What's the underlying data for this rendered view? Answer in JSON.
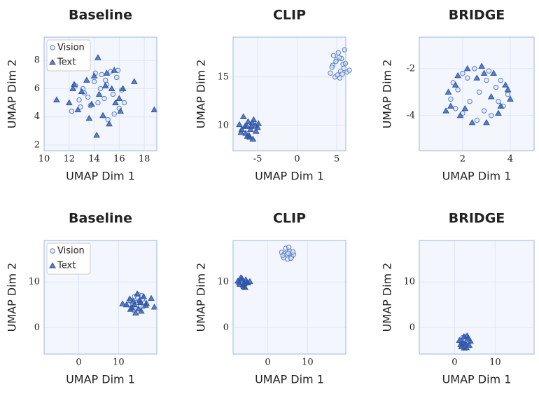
{
  "chart_data": [
    {
      "type": "scatter",
      "title": "Baseline",
      "x_label": "UMAP Dim 1",
      "y_label": "UMAP Dim 2",
      "xlim": [
        10,
        19
      ],
      "ylim": [
        1.6,
        9.65
      ],
      "xticks": [
        10,
        12,
        14,
        16,
        18
      ],
      "yticks": [
        2,
        4,
        6,
        8
      ],
      "grid": true,
      "legend": "upper left",
      "series": [
        {
          "name": "Vision",
          "color": "#5b7fc7",
          "marker": "o",
          "x": [
            12.2,
            12.8,
            13.1,
            13.5,
            14.0,
            14.3,
            14.6,
            15.0,
            15.3,
            15.5,
            15.8,
            16.0,
            16.2,
            13.7,
            14.8,
            12.5,
            15.1,
            14.1,
            13.2,
            16.4,
            15.6,
            14.5,
            12.9,
            15.9,
            14.9
          ],
          "values": [
            4.4,
            5.2,
            6.0,
            5.4,
            6.5,
            5.0,
            7.0,
            6.3,
            7.2,
            5.6,
            6.8,
            4.6,
            5.9,
            4.8,
            5.3,
            6.2,
            3.8,
            7.1,
            5.7,
            5.0,
            4.2,
            6.0,
            4.7,
            7.3,
            6.6
          ]
        },
        {
          "name": "Text",
          "color": "#2f55a8",
          "marker": "^",
          "x": [
            11.0,
            12.0,
            12.4,
            12.7,
            13.0,
            13.4,
            13.8,
            14.2,
            14.3,
            14.4,
            14.7,
            15.0,
            15.2,
            15.4,
            15.6,
            16.0,
            16.3,
            17.2,
            18.8,
            13.6,
            14.0,
            15.7,
            12.3,
            16.1,
            14.9
          ],
          "values": [
            5.2,
            5.0,
            6.3,
            4.5,
            5.8,
            6.6,
            4.9,
            2.7,
            8.2,
            5.6,
            4.1,
            7.1,
            3.5,
            6.0,
            7.3,
            5.3,
            6.0,
            6.5,
            4.5,
            3.9,
            6.9,
            5.0,
            6.0,
            4.4,
            6.2
          ]
        }
      ]
    },
    {
      "type": "scatter",
      "title": "CLIP",
      "x_label": "UMAP Dim 1",
      "y_label": "UMAP Dim 2",
      "xlim": [
        -8.1,
        6.15
      ],
      "ylim": [
        7.4,
        19.1
      ],
      "xticks": [
        -5,
        0,
        5
      ],
      "yticks": [
        10,
        15
      ],
      "grid": true,
      "series": [
        {
          "color": "#5b7fc7",
          "marker": "o",
          "x": [
            4.2,
            4.5,
            4.8,
            5.0,
            5.2,
            5.5,
            5.8,
            6.0,
            6.3,
            6.6,
            4.6,
            5.1,
            5.6,
            5.9,
            4.4,
            5.3,
            6.1,
            5.4,
            4.9,
            5.7
          ],
          "values": [
            15.4,
            16.2,
            15.0,
            16.8,
            17.5,
            15.6,
            16.3,
            17.8,
            15.5,
            15.7,
            17.2,
            15.2,
            16.9,
            15.9,
            16.0,
            17.0,
            16.4,
            14.9,
            16.6,
            15.3
          ]
        },
        {
          "color": "#2f55a8",
          "marker": "^",
          "x": [
            -7.3,
            -7.0,
            -6.8,
            -6.5,
            -6.2,
            -6.0,
            -5.8,
            -5.5,
            -5.2,
            -4.9,
            -6.6,
            -6.1,
            -5.6,
            -5.3,
            -7.1,
            -6.4,
            -5.9,
            -5.0,
            -6.3,
            -5.7
          ],
          "values": [
            10.1,
            9.6,
            10.9,
            9.2,
            10.4,
            8.8,
            9.9,
            10.6,
            9.4,
            10.2,
            9.9,
            9.0,
            8.6,
            10.0,
            9.3,
            10.0,
            9.6,
            9.8,
            8.9,
            10.3
          ]
        }
      ]
    },
    {
      "type": "scatter",
      "title": "BRIDGE",
      "x_label": "UMAP Dim 1",
      "y_label": "UMAP Dim 2",
      "xlim": [
        0.18,
        5
      ],
      "ylim": [
        -5.5,
        -0.66
      ],
      "xticks": [
        2,
        4
      ],
      "yticks": [
        -4,
        -2
      ],
      "grid": true,
      "series": [
        {
          "color": "#5b7fc7",
          "marker": "o",
          "x": [
            1.6,
            2.0,
            2.5,
            3.1,
            3.6,
            3.9,
            3.7,
            3.2,
            2.6,
            2.0,
            1.5,
            1.8,
            2.3,
            2.9,
            3.4,
            3.0,
            2.2,
            1.7,
            2.7,
            3.5
          ],
          "values": [
            -2.6,
            -2.2,
            -2.0,
            -2.1,
            -2.5,
            -3.1,
            -3.6,
            -4.0,
            -4.2,
            -3.9,
            -3.3,
            -2.9,
            -3.4,
            -3.8,
            -2.8,
            -2.5,
            -2.4,
            -3.7,
            -3.0,
            -3.4
          ]
        },
        {
          "color": "#2f55a8",
          "marker": "^",
          "x": [
            1.4,
            1.8,
            2.2,
            2.8,
            3.3,
            3.8,
            4.0,
            3.5,
            3.0,
            2.4,
            1.9,
            1.5,
            1.7,
            2.6,
            3.2,
            3.9,
            2.1,
            2.9,
            3.6,
            1.3
          ],
          "values": [
            -3.0,
            -2.3,
            -2.0,
            -1.9,
            -2.2,
            -2.7,
            -3.3,
            -3.9,
            -4.3,
            -4.3,
            -4.0,
            -3.6,
            -2.7,
            -2.4,
            -3.2,
            -2.9,
            -3.7,
            -2.2,
            -3.6,
            -3.8
          ]
        }
      ]
    },
    {
      "type": "scatter",
      "title": "Baseline",
      "x_label": "UMAP Dim 1",
      "y_label": "UMAP Dim 2",
      "xlim": [
        -8.7,
        19.6
      ],
      "ylim": [
        -5.8,
        19.1
      ],
      "xticks": [
        0,
        10
      ],
      "yticks": [
        0,
        10
      ],
      "grid": true,
      "legend": "upper left",
      "series": [
        {
          "name": "Vision",
          "color": "#5b7fc7",
          "marker": "o",
          "x": [
            12.5,
            13.0,
            13.5,
            14.0,
            14.5,
            15.0,
            15.5,
            16.0,
            16.5,
            13.8,
            14.8,
            15.8,
            14.2,
            15.2,
            16.2
          ],
          "values": [
            5.0,
            6.0,
            4.5,
            6.8,
            5.5,
            7.2,
            4.8,
            6.2,
            5.4,
            3.8,
            6.5,
            7.0,
            4.2,
            5.8,
            4.6
          ]
        },
        {
          "name": "Text",
          "color": "#2f55a8",
          "marker": "^",
          "x": [
            11.0,
            12.0,
            12.8,
            13.3,
            13.7,
            14.3,
            14.7,
            15.3,
            15.7,
            16.3,
            17.0,
            18.2,
            19.0,
            14.0,
            15.0,
            16.8,
            13.0,
            15.5
          ],
          "values": [
            5.2,
            5.0,
            6.3,
            4.4,
            5.8,
            3.2,
            7.4,
            6.0,
            3.6,
            6.8,
            5.3,
            6.4,
            4.5,
            5.0,
            4.1,
            4.9,
            4.0,
            5.5
          ]
        }
      ]
    },
    {
      "type": "scatter",
      "title": "CLIP",
      "x_label": "UMAP Dim 1",
      "y_label": "UMAP Dim 2",
      "xlim": [
        -8.7,
        19.6
      ],
      "ylim": [
        -5.8,
        19.1
      ],
      "xticks": [
        0,
        10
      ],
      "yticks": [
        0,
        10
      ],
      "grid": true,
      "series": [
        {
          "color": "#5b7fc7",
          "marker": "o",
          "x": [
            3.5,
            4.0,
            4.5,
            5.0,
            5.5,
            6.0,
            6.5,
            4.2,
            4.8,
            5.3,
            5.8,
            6.3,
            3.8,
            5.1
          ],
          "values": [
            16.5,
            15.3,
            17.4,
            15.0,
            16.8,
            15.5,
            16.0,
            16.2,
            16.0,
            17.6,
            15.2,
            16.6,
            15.8,
            16.3
          ]
        },
        {
          "color": "#2f55a8",
          "marker": "^",
          "x": [
            -7.5,
            -7.0,
            -6.5,
            -6.0,
            -5.5,
            -5.0,
            -4.5,
            -6.8,
            -6.2,
            -5.7,
            -5.2,
            -7.2,
            -6.4,
            -5.9
          ],
          "values": [
            10.2,
            9.5,
            10.8,
            9.0,
            10.5,
            9.8,
            10.1,
            10.9,
            9.3,
            8.8,
            10.0,
            9.9,
            10.4,
            9.6
          ]
        }
      ]
    },
    {
      "type": "scatter",
      "title": "BRIDGE",
      "x_label": "UMAP Dim 1",
      "y_label": "UMAP Dim 2",
      "xlim": [
        -8.7,
        19.6
      ],
      "ylim": [
        -5.8,
        19.1
      ],
      "xticks": [
        0,
        10
      ],
      "yticks": [
        0,
        10
      ],
      "grid": true,
      "series": [
        {
          "color": "#5b7fc7",
          "marker": "o",
          "x": [
            1.5,
            2.0,
            2.5,
            3.0,
            3.5,
            2.2,
            2.8,
            3.3,
            1.8,
            2.6
          ],
          "values": [
            -3.0,
            -2.2,
            -3.8,
            -2.5,
            -3.2,
            -4.0,
            -1.9,
            -3.6,
            -3.5,
            -2.8
          ]
        },
        {
          "color": "#2f55a8",
          "marker": "^",
          "x": [
            1.2,
            1.7,
            2.3,
            2.9,
            3.4,
            3.9,
            2.0,
            2.6,
            3.1,
            1.5,
            2.4,
            3.6
          ],
          "values": [
            -2.8,
            -4.2,
            -2.0,
            -4.4,
            -2.3,
            -3.0,
            -3.2,
            -3.4,
            -1.8,
            -3.7,
            -4.5,
            -3.9
          ]
        }
      ]
    }
  ]
}
